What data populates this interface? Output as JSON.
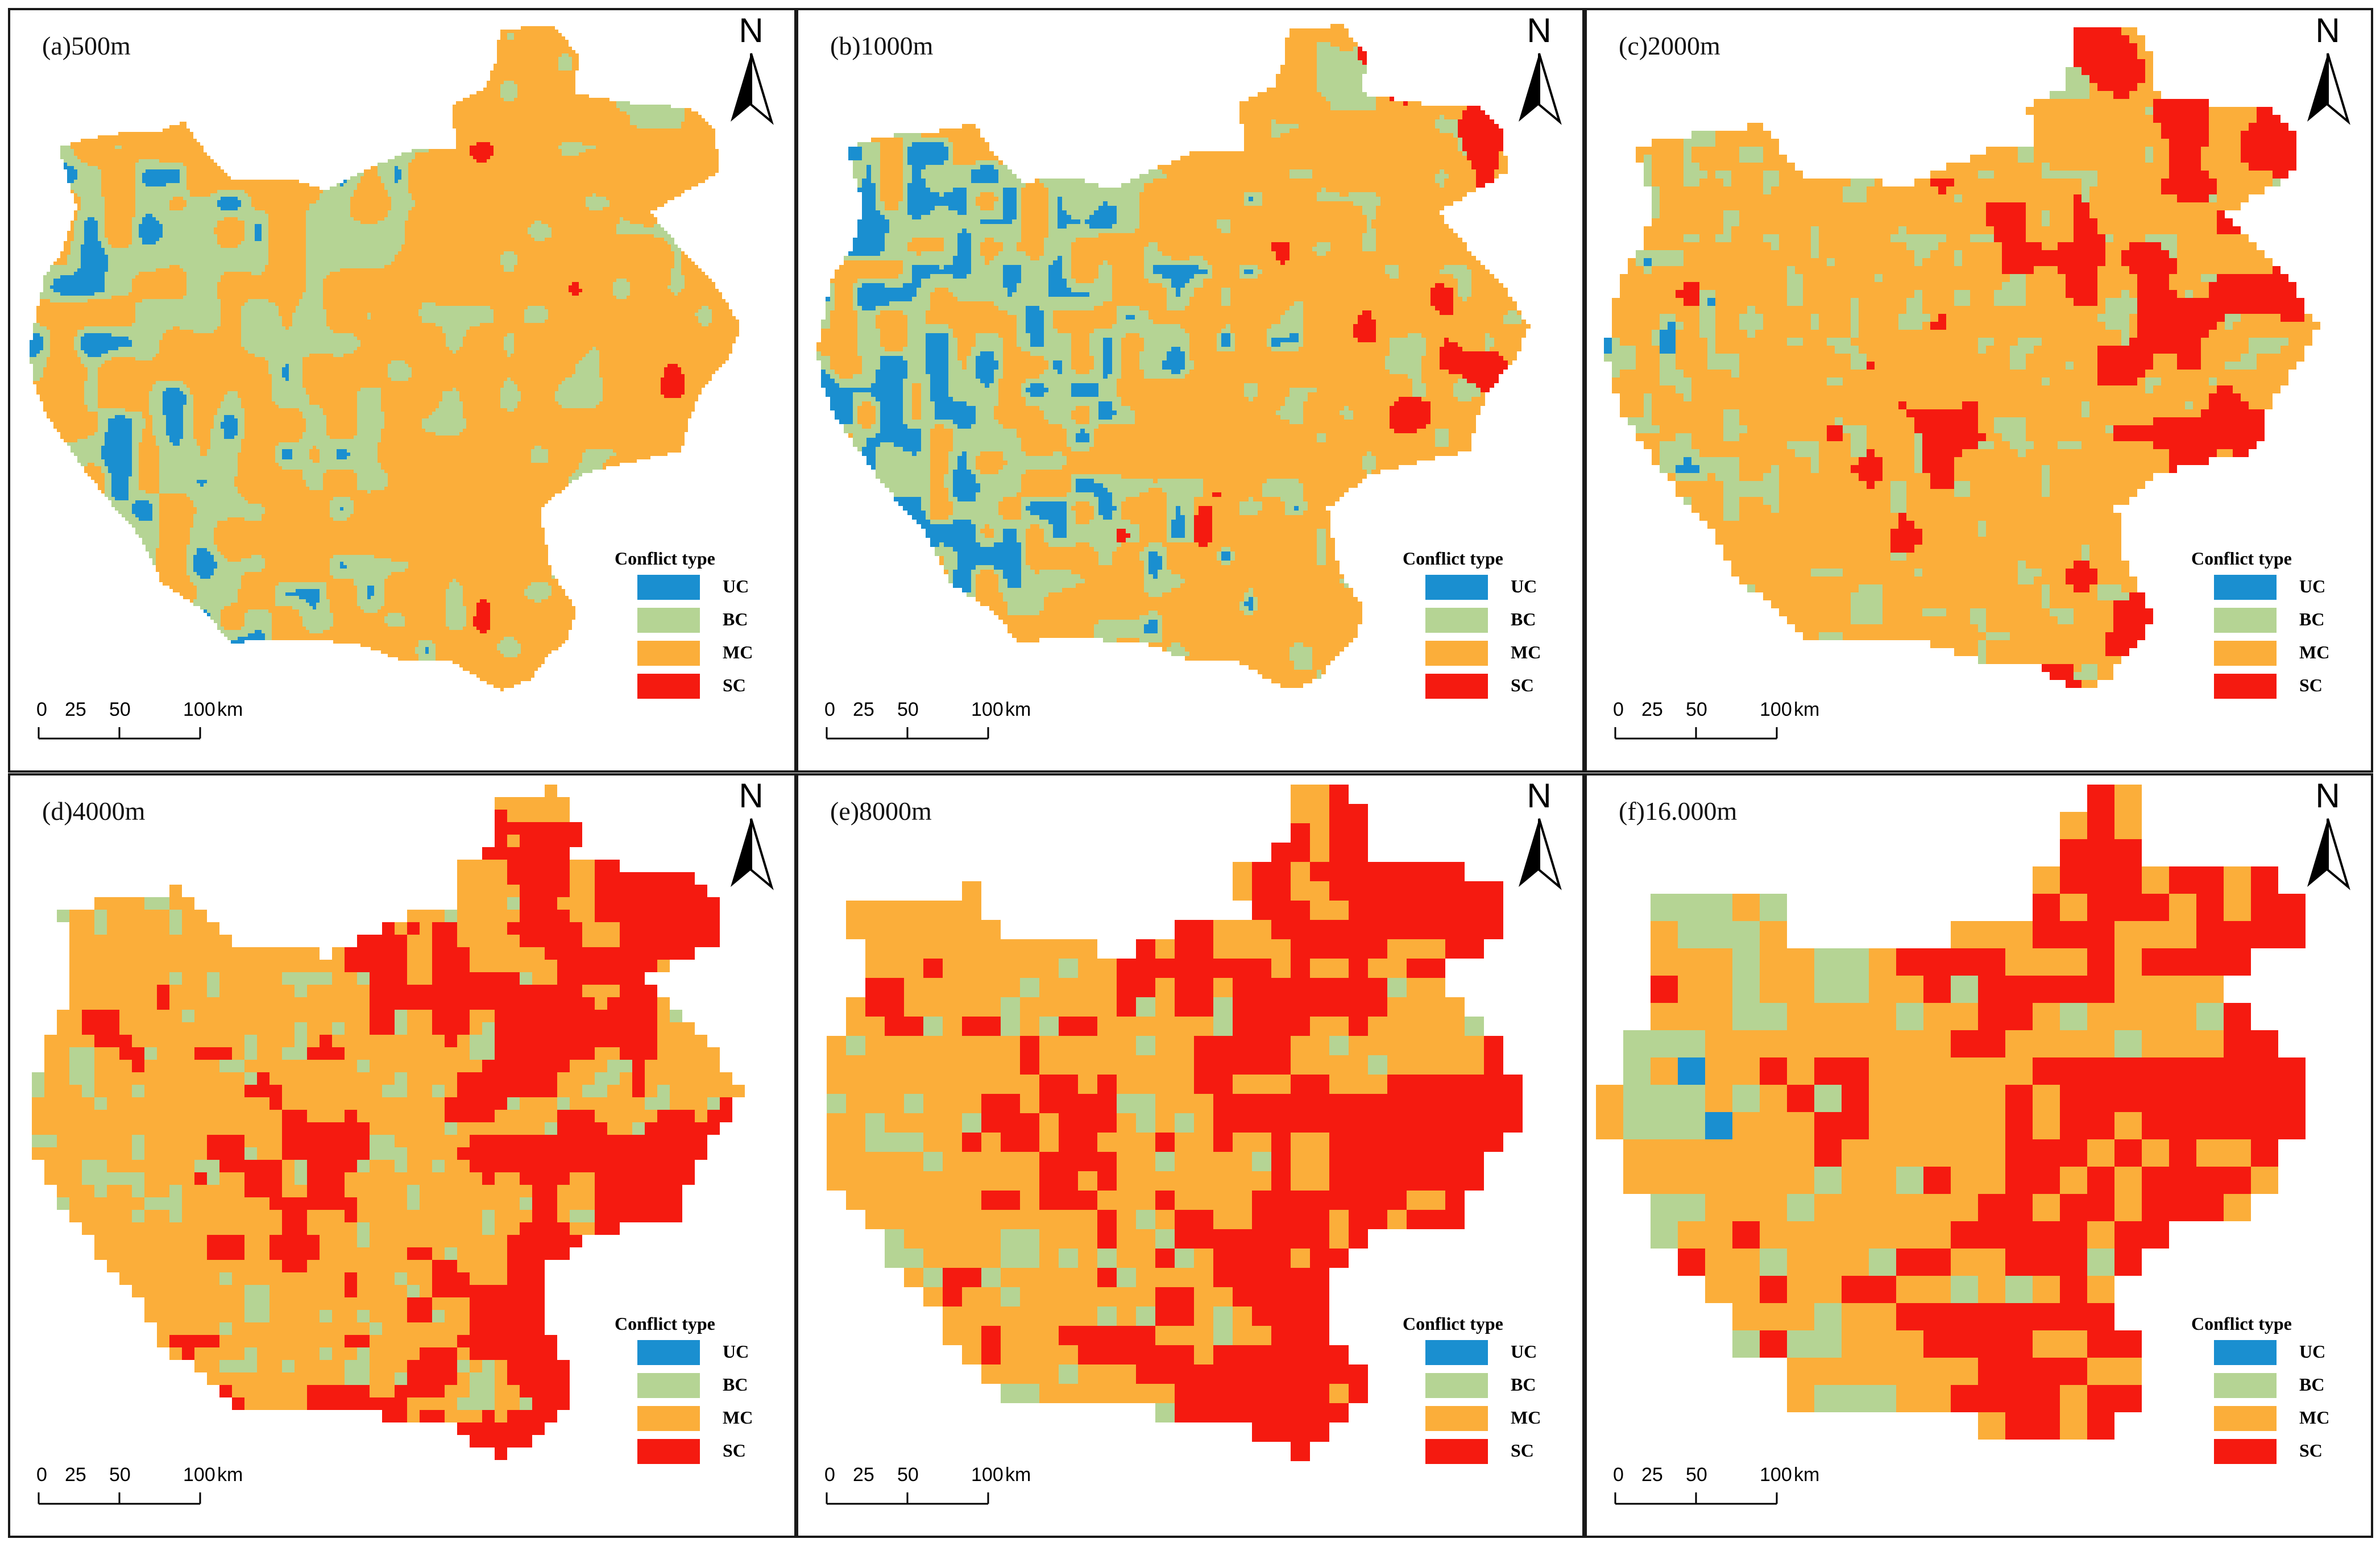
{
  "colors": {
    "UC": "#1a8fd0",
    "BC": "#b5d494",
    "MC": "#fbae3a",
    "SC": "#f51a10"
  },
  "north_label": "N",
  "legend": {
    "title": "Conflict type",
    "items": [
      {
        "label": "UC",
        "color": "#1a8fd0"
      },
      {
        "label": "BC",
        "color": "#b5d494"
      },
      {
        "label": "MC",
        "color": "#fbae3a"
      },
      {
        "label": "SC",
        "color": "#f51a10"
      }
    ]
  },
  "scalebar": {
    "ticks": [
      "0",
      "25",
      "50",
      "100"
    ],
    "unit": "km"
  },
  "panels": [
    {
      "title": "(a)500m",
      "scale_m": 500,
      "detail": 1.0
    },
    {
      "title": "(b)1000m",
      "scale_m": 1000,
      "detail": 1.0
    },
    {
      "title": "(c)2000m",
      "scale_m": 2000,
      "detail": 1.0
    },
    {
      "title": "(d)4000m",
      "scale_m": 4000,
      "detail": 1.0
    },
    {
      "title": "(e)8000m",
      "scale_m": 8000,
      "detail": 1.0
    },
    {
      "title": "(f)16.000m",
      "scale_m": 16000,
      "detail": 1.0
    }
  ]
}
